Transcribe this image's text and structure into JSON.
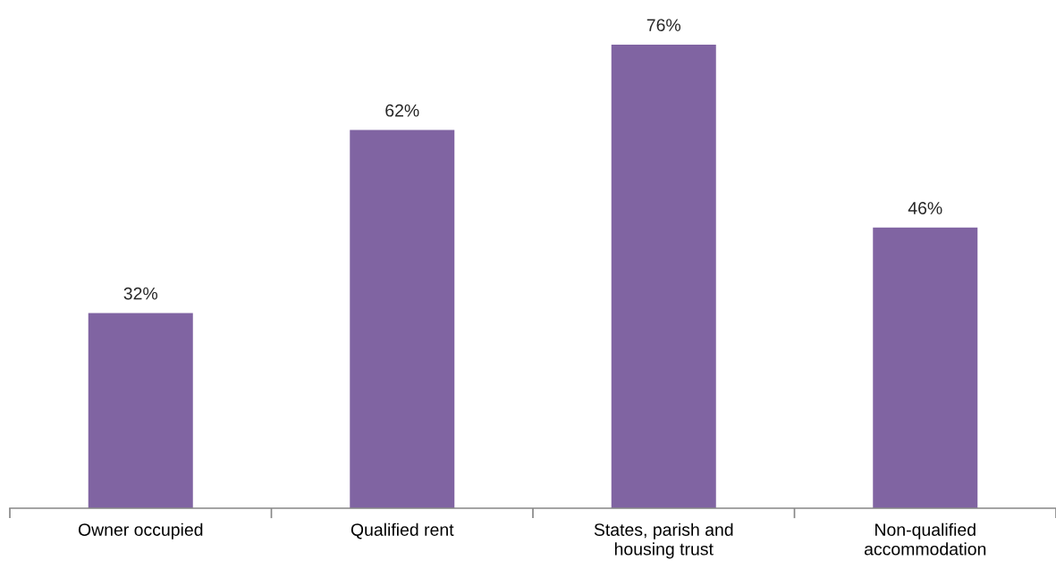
{
  "chart_data": {
    "type": "bar",
    "categories": [
      "Owner occupied",
      "Qualified rent",
      "States, parish and\nhousing trust",
      "Non-qualified\naccommodation"
    ],
    "values": [
      32,
      62,
      76,
      46
    ],
    "color": "#8064a2",
    "value_labels": [
      "32%",
      "62%",
      "76%",
      "46%"
    ],
    "tick_labels": "x"
  }
}
